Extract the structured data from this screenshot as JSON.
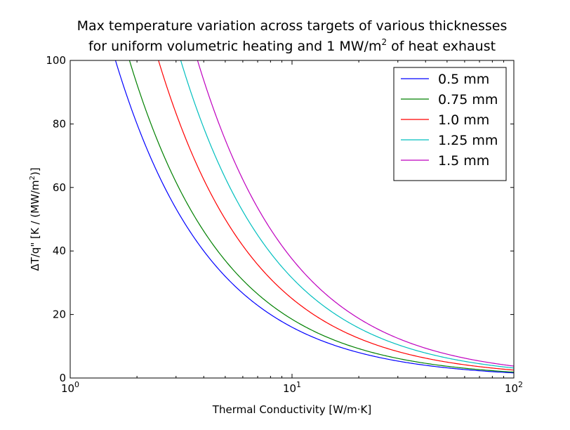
{
  "chart_data": {
    "type": "line",
    "title_line1": "Max temperature variation across targets of various thicknesses",
    "title_line2_pre": "for uniform volumetric heating and 1 MW/m",
    "title_line2_sup": "2",
    "title_line2_post": " of heat exhaust",
    "xlabel": "Thermal Conductivity [W/m·K]",
    "ylabel_pre": "ΔT/q\" [K / (MW/m",
    "ylabel_sup": "2",
    "ylabel_post": ")]",
    "xscale": "log",
    "xlim": [
      1,
      100
    ],
    "ylim": [
      0,
      100
    ],
    "x_ticks": [
      {
        "base": "10",
        "exp": "0"
      },
      {
        "base": "10",
        "exp": "1"
      },
      {
        "base": "10",
        "exp": "2"
      }
    ],
    "y_ticks": [
      "0",
      "20",
      "40",
      "60",
      "80",
      "100"
    ],
    "grid": false,
    "legend_position": "top-right",
    "series": [
      {
        "name": "0.5 mm",
        "color": "#0000ff",
        "coefficient": 160
      },
      {
        "name": "0.75 mm",
        "color": "#008000",
        "coefficient": 185
      },
      {
        "name": "1.0 mm",
        "color": "#ff0000",
        "coefficient": 250
      },
      {
        "name": "1.25 mm",
        "color": "#00bfbf",
        "coefficient": 315
      },
      {
        "name": "1.5 mm",
        "color": "#bf00bf",
        "coefficient": 375
      }
    ]
  }
}
